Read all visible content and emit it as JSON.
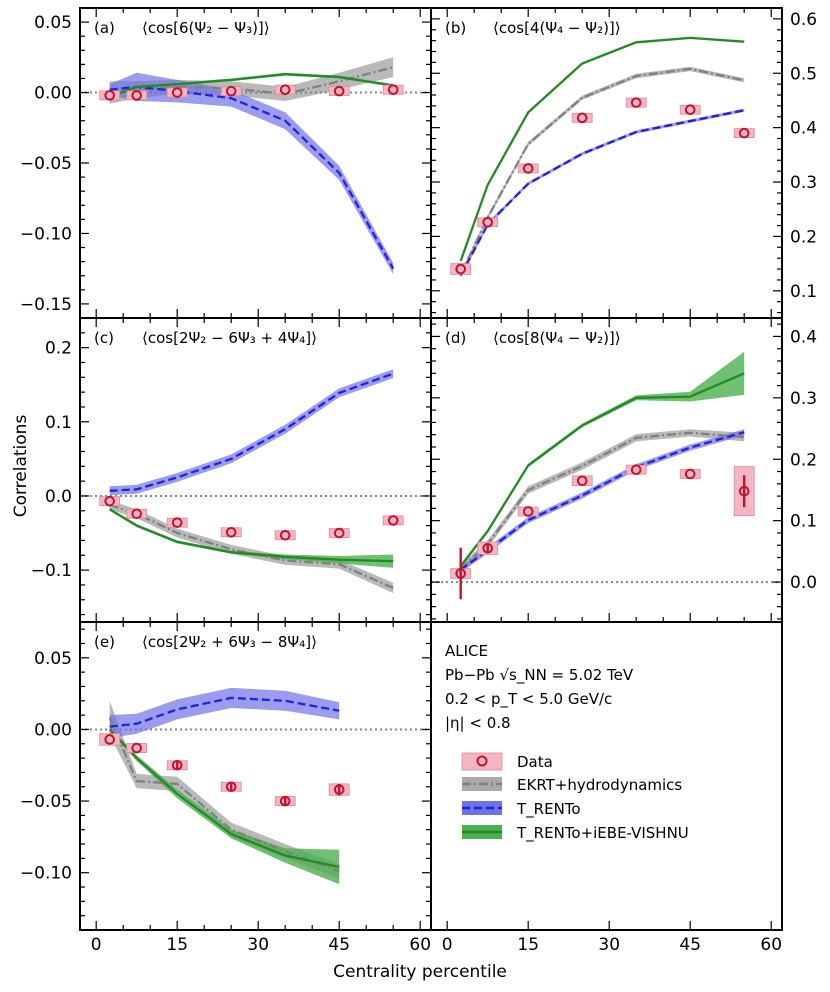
{
  "figure": {
    "x_title": "Centrality percentile",
    "y_title": "Correlations",
    "x_ticks": [
      "0",
      "15",
      "30",
      "45",
      "60"
    ],
    "colors": {
      "data": "#c8102e",
      "data_box": "#f4b6c2",
      "ekrt": "#808080",
      "trento": "#2222dd",
      "trento_band": "#7070e8",
      "vishnu": "#228b22",
      "vishnu_band": "#4caf50",
      "reference": "#888888"
    }
  },
  "info": {
    "lines": [
      "ALICE",
      "Pb−Pb √s_NN = 5.02 TeV",
      "0.2 < p_T < 5.0 GeV/c",
      "|η| < 0.8"
    ]
  },
  "legend": {
    "items": [
      {
        "key": "data",
        "label": "Data"
      },
      {
        "key": "ekrt",
        "label": "EKRT+hydrodynamics"
      },
      {
        "key": "trento",
        "label": "T_RENTo"
      },
      {
        "key": "vishnu",
        "label": "T_RENTo+iEBE-VISHNU"
      }
    ]
  },
  "chart_data": [
    {
      "type": "line",
      "panel": "a",
      "letter": "(a)",
      "title": "⟨cos[6(Ψ₂ − Ψ₃)]⟩",
      "xlim": [
        -3,
        62
      ],
      "ylim": [
        -0.16,
        0.06
      ],
      "y_ticks": [
        "0.05",
        "0.00",
        "−0.05",
        "−0.10",
        "−0.15"
      ],
      "y_tick_values": [
        0.05,
        0.0,
        -0.05,
        -0.1,
        -0.15
      ],
      "y_axis_side": "left",
      "data": {
        "x": [
          2.5,
          7.5,
          15,
          25,
          35,
          45,
          55
        ],
        "y": [
          -0.002,
          -0.002,
          0.0,
          0.001,
          0.002,
          0.001,
          0.002
        ],
        "box_err": [
          0.003,
          0.003,
          0.002,
          0.002,
          0.002,
          0.002,
          0.003
        ],
        "stat_err": [
          0.001,
          0.001,
          0.001,
          0.001,
          0.001,
          0.001,
          0.001
        ]
      },
      "series": [
        {
          "name": "EKRT+hydrodynamics",
          "x": [
            2.5,
            7.5,
            15,
            25,
            35,
            45,
            55
          ],
          "values": [
            0.0,
            0.002,
            0.004,
            0.003,
            -0.001,
            0.008,
            0.018
          ],
          "band": [
            0.008,
            0.006,
            0.005,
            0.005,
            0.005,
            0.006,
            0.007
          ]
        },
        {
          "name": "T_RENTo",
          "x": [
            2.5,
            7.5,
            15,
            25,
            35,
            45,
            55
          ],
          "values": [
            0.002,
            0.004,
            0.001,
            -0.004,
            -0.02,
            -0.057,
            -0.125
          ],
          "band": [
            0.004,
            0.01,
            0.008,
            0.006,
            0.006,
            0.005,
            0.004
          ]
        },
        {
          "name": "T_RENTo+iEBE-VISHNU",
          "x": [
            2.5,
            7.5,
            15,
            25,
            35,
            45,
            55
          ],
          "values": [
            -0.003,
            0.004,
            0.006,
            0.009,
            0.013,
            0.011,
            0.005
          ],
          "band": [
            0.001,
            0.001,
            0.001,
            0.001,
            0.001,
            0.001,
            0.001
          ]
        }
      ],
      "reference_line": 0
    },
    {
      "type": "line",
      "panel": "b",
      "letter": "(b)",
      "title": "⟨cos[4(Ψ₄ − Ψ₂)]⟩",
      "xlim": [
        -3,
        62
      ],
      "ylim": [
        0.05,
        0.62
      ],
      "y_ticks": [
        "0.6",
        "0.5",
        "0.4",
        "0.3",
        "0.2",
        "0.1"
      ],
      "y_tick_values": [
        0.6,
        0.5,
        0.4,
        0.3,
        0.2,
        0.1
      ],
      "y_axis_side": "right",
      "data": {
        "x": [
          2.5,
          7.5,
          15,
          25,
          35,
          45,
          55
        ],
        "y": [
          0.14,
          0.226,
          0.325,
          0.418,
          0.446,
          0.433,
          0.39
        ],
        "box_err": [
          0.01,
          0.007,
          0.006,
          0.006,
          0.004,
          0.004,
          0.005
        ],
        "stat_err": [
          0.002,
          0.002,
          0.002,
          0.002,
          0.002,
          0.002,
          0.002
        ]
      },
      "series": [
        {
          "name": "EKRT+hydrodynamics",
          "x": [
            2.5,
            7.5,
            15,
            25,
            35,
            45,
            55
          ],
          "values": [
            0.13,
            0.235,
            0.37,
            0.455,
            0.495,
            0.508,
            0.487
          ],
          "band": [
            0.004,
            0.004,
            0.004,
            0.004,
            0.004,
            0.004,
            0.004
          ]
        },
        {
          "name": "T_RENTo",
          "x": [
            2.5,
            7.5,
            15,
            25,
            35,
            45,
            55
          ],
          "values": [
            0.128,
            0.222,
            0.297,
            0.352,
            0.392,
            0.412,
            0.432
          ],
          "band": [
            0.004,
            0.004,
            0.003,
            0.003,
            0.003,
            0.003,
            0.003
          ]
        },
        {
          "name": "T_RENTo+iEBE-VISHNU",
          "x": [
            2.5,
            7.5,
            15,
            25,
            35,
            45,
            55
          ],
          "values": [
            0.155,
            0.295,
            0.428,
            0.518,
            0.557,
            0.565,
            0.558
          ],
          "band": [
            0.001,
            0.001,
            0.001,
            0.001,
            0.001,
            0.001,
            0.001
          ]
        }
      ],
      "reference_line": null
    },
    {
      "type": "line",
      "panel": "c",
      "letter": "(c)",
      "title": "⟨cos[2Ψ₂ − 6Ψ₃ + 4Ψ₄]⟩",
      "xlim": [
        -3,
        62
      ],
      "ylim": [
        -0.17,
        0.24
      ],
      "y_ticks": [
        "0.2",
        "0.1",
        "0.0",
        "−0.1"
      ],
      "y_tick_values": [
        0.2,
        0.1,
        0.0,
        -0.1
      ],
      "y_axis_side": "left",
      "data": {
        "x": [
          2.5,
          7.5,
          15,
          25,
          35,
          45,
          55
        ],
        "y": [
          -0.007,
          -0.024,
          -0.036,
          -0.049,
          -0.053,
          -0.05,
          -0.033
        ],
        "box_err": [
          0.006,
          0.005,
          0.005,
          0.005,
          0.005,
          0.005,
          0.006
        ],
        "stat_err": [
          0.002,
          0.002,
          0.002,
          0.002,
          0.002,
          0.002,
          0.002
        ]
      },
      "series": [
        {
          "name": "EKRT+hydrodynamics",
          "x": [
            2.5,
            7.5,
            15,
            25,
            35,
            45,
            55
          ],
          "values": [
            -0.012,
            -0.024,
            -0.05,
            -0.072,
            -0.087,
            -0.092,
            -0.124
          ],
          "band": [
            0.006,
            0.006,
            0.006,
            0.006,
            0.006,
            0.006,
            0.007
          ]
        },
        {
          "name": "T_RENTo",
          "x": [
            2.5,
            7.5,
            15,
            25,
            35,
            45,
            55
          ],
          "values": [
            0.007,
            0.009,
            0.025,
            0.05,
            0.09,
            0.139,
            0.165
          ],
          "band": [
            0.006,
            0.006,
            0.006,
            0.006,
            0.006,
            0.006,
            0.006
          ]
        },
        {
          "name": "T_RENTo+iEBE-VISHNU",
          "x": [
            2.5,
            7.5,
            15,
            25,
            35,
            45,
            55
          ],
          "values": [
            -0.018,
            -0.04,
            -0.062,
            -0.076,
            -0.082,
            -0.086,
            -0.088
          ],
          "band": [
            0.002,
            0.002,
            0.002,
            0.002,
            0.003,
            0.005,
            0.009
          ]
        }
      ],
      "reference_line": 0
    },
    {
      "type": "line",
      "panel": "d",
      "letter": "(d)",
      "title": "⟨cos[8(Ψ₄ − Ψ₂)]⟩",
      "xlim": [
        -3,
        62
      ],
      "ylim": [
        -0.065,
        0.43
      ],
      "y_ticks": [
        "0.4",
        "0.3",
        "0.2",
        "0.1",
        "0.0"
      ],
      "y_tick_values": [
        0.4,
        0.3,
        0.2,
        0.1,
        0.0
      ],
      "y_axis_side": "right",
      "data": {
        "x": [
          2.5,
          7.5,
          15,
          25,
          35,
          45,
          55
        ],
        "y": [
          0.014,
          0.055,
          0.115,
          0.165,
          0.183,
          0.176,
          0.148
        ],
        "box_err": [
          0.008,
          0.01,
          0.007,
          0.008,
          0.005,
          0.005,
          0.04
        ],
        "stat_err": [
          0.042,
          0.008,
          0.004,
          0.004,
          0.003,
          0.004,
          0.026
        ]
      },
      "series": [
        {
          "name": "EKRT+hydrodynamics",
          "x": [
            2.5,
            7.5,
            15,
            25,
            35,
            45,
            55
          ],
          "values": [
            0.022,
            0.062,
            0.15,
            0.189,
            0.235,
            0.243,
            0.236
          ],
          "band": [
            0.006,
            0.006,
            0.006,
            0.006,
            0.006,
            0.006,
            0.007
          ]
        },
        {
          "name": "T_RENTo",
          "x": [
            2.5,
            7.5,
            15,
            25,
            35,
            45,
            55
          ],
          "values": [
            0.02,
            0.052,
            0.101,
            0.141,
            0.187,
            0.219,
            0.244
          ],
          "band": [
            0.005,
            0.005,
            0.005,
            0.005,
            0.005,
            0.005,
            0.005
          ]
        },
        {
          "name": "T_RENTo+iEBE-VISHNU",
          "x": [
            2.5,
            7.5,
            15,
            25,
            35,
            45,
            55
          ],
          "values": [
            0.026,
            0.083,
            0.19,
            0.255,
            0.3,
            0.302,
            0.34
          ],
          "band": [
            0.003,
            0.003,
            0.003,
            0.003,
            0.004,
            0.008,
            0.035
          ]
        }
      ],
      "reference_line": 0
    },
    {
      "type": "line",
      "panel": "e",
      "letter": "(e)",
      "title": "⟨cos[2Ψ₂ + 6Ψ₃ − 8Ψ₄]⟩",
      "xlim": [
        -3,
        62
      ],
      "ylim": [
        -0.14,
        0.075
      ],
      "y_ticks": [
        "0.05",
        "0.00",
        "−0.05",
        "−0.10"
      ],
      "y_tick_values": [
        0.05,
        0.0,
        -0.05,
        -0.1
      ],
      "y_axis_side": "left",
      "data": {
        "x": [
          2.5,
          7.5,
          15,
          25,
          35,
          45
        ],
        "y": [
          -0.007,
          -0.013,
          -0.025,
          -0.04,
          -0.05,
          -0.042
        ],
        "box_err": [
          0.004,
          0.003,
          0.003,
          0.003,
          0.003,
          0.004
        ],
        "stat_err": [
          0.002,
          0.002,
          0.003,
          0.003,
          0.003,
          0.004
        ]
      },
      "series": [
        {
          "name": "EKRT+hydrodynamics",
          "x": [
            2.5,
            7.5,
            15,
            25,
            35,
            45
          ],
          "values": [
            0.008,
            -0.036,
            -0.038,
            -0.07,
            -0.085,
            -0.099
          ],
          "band": [
            0.012,
            0.005,
            0.005,
            0.005,
            0.005,
            0.005
          ]
        },
        {
          "name": "T_RENTo",
          "x": [
            2.5,
            7.5,
            15,
            25,
            35,
            45
          ],
          "values": [
            0.002,
            0.004,
            0.014,
            0.022,
            0.02,
            0.013
          ],
          "band": [
            0.008,
            0.007,
            0.007,
            0.007,
            0.007,
            0.006
          ]
        },
        {
          "name": "T_RENTo+iEBE-VISHNU",
          "x": [
            2.5,
            7.5,
            15,
            25,
            35,
            45
          ],
          "values": [
            0.0,
            -0.02,
            -0.045,
            -0.073,
            -0.088,
            -0.096
          ],
          "band": [
            0.001,
            0.002,
            0.003,
            0.003,
            0.005,
            0.012
          ]
        }
      ],
      "reference_line": 0
    }
  ]
}
